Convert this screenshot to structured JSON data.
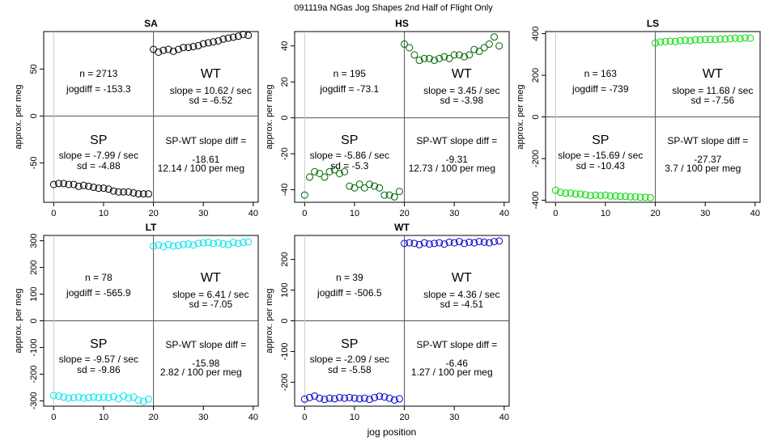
{
  "main_title": "091119a   NGas Jog Shapes 2nd Half of Flight Only",
  "xlabel": "jog position",
  "ylabel": "approx. per meg",
  "chart_data": [
    {
      "type": "scatter",
      "title": "SA",
      "color": "#000000",
      "xlim": [
        -2,
        41
      ],
      "ylim": [
        -92,
        90
      ],
      "x_ticks": [
        0,
        10,
        20,
        30,
        40
      ],
      "y_ticks": [
        -50,
        0,
        50
      ],
      "x": [
        0,
        1,
        2,
        3,
        4,
        5,
        6,
        7,
        8,
        9,
        10,
        11,
        12,
        13,
        14,
        15,
        16,
        17,
        18,
        19,
        20,
        21,
        22,
        23,
        24,
        25,
        26,
        27,
        28,
        29,
        30,
        31,
        32,
        33,
        34,
        35,
        36,
        37,
        38,
        39
      ],
      "y": [
        -73,
        -72,
        -72,
        -73,
        -73,
        -75,
        -74,
        -75,
        -76,
        -77,
        -77,
        -78,
        -80,
        -81,
        -81,
        -81,
        -82,
        -83,
        -83,
        -83,
        71,
        68,
        70,
        71,
        69,
        71,
        73,
        73,
        74,
        75,
        77,
        78,
        79,
        80,
        82,
        83,
        84,
        85,
        87,
        86
      ],
      "labels": {
        "n": "n = 2713",
        "jogdiff": "jogdiff = -153.3",
        "wt": "WT",
        "wt_slope": "slope = 10.62 / sec",
        "wt_sd": "sd = -6.52",
        "sp": "SP",
        "sp_slope": "slope = -7.99 / sec",
        "sp_sd": "sd = -4.88",
        "diff_label": "SP-WT slope diff =",
        "diff_value": "-18.61",
        "diff_per": "12.14 / 100 per meg"
      }
    },
    {
      "type": "scatter",
      "title": "HS",
      "color": "#006400",
      "xlim": [
        -2,
        41
      ],
      "ylim": [
        -47,
        48
      ],
      "x_ticks": [
        0,
        10,
        20,
        30,
        40
      ],
      "y_ticks": [
        -40,
        -20,
        0,
        20,
        40
      ],
      "x": [
        0,
        1,
        2,
        3,
        4,
        5,
        6,
        7,
        8,
        9,
        10,
        11,
        12,
        13,
        14,
        15,
        16,
        17,
        18,
        19,
        20,
        21,
        22,
        23,
        24,
        25,
        26,
        27,
        28,
        29,
        30,
        31,
        32,
        33,
        34,
        35,
        36,
        37,
        38,
        39
      ],
      "y": [
        -43,
        -33,
        -30,
        -31,
        -33,
        -30,
        -29,
        -31,
        -30,
        -38,
        -39,
        -37,
        -39,
        -37,
        -38,
        -39,
        -43,
        -43,
        -44,
        -41,
        41,
        39,
        35,
        32,
        33,
        33,
        32,
        33,
        34,
        33,
        35,
        35,
        34,
        35,
        38,
        37,
        39,
        41,
        45,
        40
      ],
      "labels": {
        "n": "n = 195",
        "jogdiff": "jogdiff = -73.1",
        "wt": "WT",
        "wt_slope": "slope = 3.45 / sec",
        "wt_sd": "sd = -3.98",
        "sp": "SP",
        "sp_slope": "slope = -5.86 / sec",
        "sp_sd": "sd = -5.3",
        "diff_label": "SP-WT slope diff =",
        "diff_value": "-9.31",
        "diff_per": "12.73 / 100 per meg"
      }
    },
    {
      "type": "scatter",
      "title": "LS",
      "color": "#00dd00",
      "xlim": [
        -2,
        41
      ],
      "ylim": [
        -410,
        410
      ],
      "x_ticks": [
        0,
        10,
        20,
        30,
        40
      ],
      "y_ticks": [
        -400,
        -200,
        0,
        200,
        400
      ],
      "x": [
        0,
        1,
        2,
        3,
        4,
        5,
        6,
        7,
        8,
        9,
        10,
        11,
        12,
        13,
        14,
        15,
        16,
        17,
        18,
        19,
        20,
        21,
        22,
        23,
        24,
        25,
        26,
        27,
        28,
        29,
        30,
        31,
        32,
        33,
        34,
        35,
        36,
        37,
        38,
        39
      ],
      "y": [
        -352,
        -362,
        -366,
        -366,
        -370,
        -370,
        -374,
        -378,
        -376,
        -378,
        -376,
        -380,
        -380,
        -382,
        -382,
        -384,
        -384,
        -386,
        -386,
        -388,
        355,
        360,
        362,
        364,
        362,
        366,
        368,
        366,
        370,
        370,
        372,
        372,
        372,
        374,
        374,
        376,
        378,
        376,
        380,
        378
      ],
      "labels": {
        "n": "n = 163",
        "jogdiff": "jogdiff = -739",
        "wt": "WT",
        "wt_slope": "slope = 11.68 / sec",
        "wt_sd": "sd = -7.56",
        "sp": "SP",
        "sp_slope": "slope = -15.69 / sec",
        "sp_sd": "sd = -10.43",
        "diff_label": "SP-WT slope diff =",
        "diff_value": "-27.37",
        "diff_per": "3.7 / 100 per meg"
      }
    },
    {
      "type": "scatter",
      "title": "LT",
      "color": "#00e5ee",
      "xlim": [
        -2,
        41
      ],
      "ylim": [
        -320,
        320
      ],
      "x_ticks": [
        0,
        10,
        20,
        30,
        40
      ],
      "y_ticks": [
        -300,
        -200,
        -100,
        0,
        100,
        200,
        300
      ],
      "x": [
        0,
        1,
        2,
        3,
        4,
        5,
        6,
        7,
        8,
        9,
        10,
        11,
        12,
        13,
        14,
        15,
        16,
        17,
        18,
        19,
        20,
        21,
        22,
        23,
        24,
        25,
        26,
        27,
        28,
        29,
        30,
        31,
        32,
        33,
        34,
        35,
        36,
        37,
        38,
        39
      ],
      "y": [
        -280,
        -282,
        -286,
        -290,
        -288,
        -286,
        -290,
        -288,
        -286,
        -288,
        -286,
        -288,
        -284,
        -292,
        -282,
        -290,
        -286,
        -298,
        -302,
        -294,
        280,
        284,
        278,
        286,
        280,
        282,
        286,
        288,
        284,
        290,
        292,
        294,
        290,
        292,
        288,
        286,
        294,
        290,
        294,
        296
      ],
      "labels": {
        "n": "n = 78",
        "jogdiff": "jogdiff = -565.9",
        "wt": "WT",
        "wt_slope": "slope = 6.41 / sec",
        "wt_sd": "sd = -7.05",
        "sp": "SP",
        "sp_slope": "slope = -9.57 / sec",
        "sp_sd": "sd = -9.86",
        "diff_label": "SP-WT slope diff =",
        "diff_value": "-15.98",
        "diff_per": "2.82 / 100 per meg"
      }
    },
    {
      "type": "scatter",
      "title": "WT",
      "color": "#0000cd",
      "xlim": [
        -2,
        41
      ],
      "ylim": [
        -278,
        278
      ],
      "x_ticks": [
        0,
        10,
        20,
        30,
        40
      ],
      "y_ticks": [
        -200,
        -100,
        0,
        100,
        200
      ],
      "x": [
        0,
        1,
        2,
        3,
        4,
        5,
        6,
        7,
        8,
        9,
        10,
        11,
        12,
        13,
        14,
        15,
        16,
        17,
        18,
        19,
        20,
        21,
        22,
        23,
        24,
        25,
        26,
        27,
        28,
        29,
        30,
        31,
        32,
        33,
        34,
        35,
        36,
        37,
        38,
        39
      ],
      "y": [
        -255,
        -250,
        -245,
        -252,
        -256,
        -252,
        -254,
        -250,
        -252,
        -250,
        -252,
        -254,
        -252,
        -256,
        -250,
        -246,
        -248,
        -252,
        -258,
        -254,
        252,
        254,
        252,
        248,
        254,
        250,
        252,
        254,
        250,
        256,
        254,
        258,
        252,
        256,
        254,
        258,
        256,
        254,
        258,
        260
      ],
      "labels": {
        "n": "n = 39",
        "jogdiff": "jogdiff = -506.5",
        "wt": "WT",
        "wt_slope": "slope = 4.36 / sec",
        "wt_sd": "sd = -4.51",
        "sp": "SP",
        "sp_slope": "slope = -2.09 / sec",
        "sp_sd": "sd = -5.58",
        "diff_label": "SP-WT slope diff =",
        "diff_value": "-6.46",
        "diff_per": "1.27 / 100 per meg"
      }
    }
  ]
}
